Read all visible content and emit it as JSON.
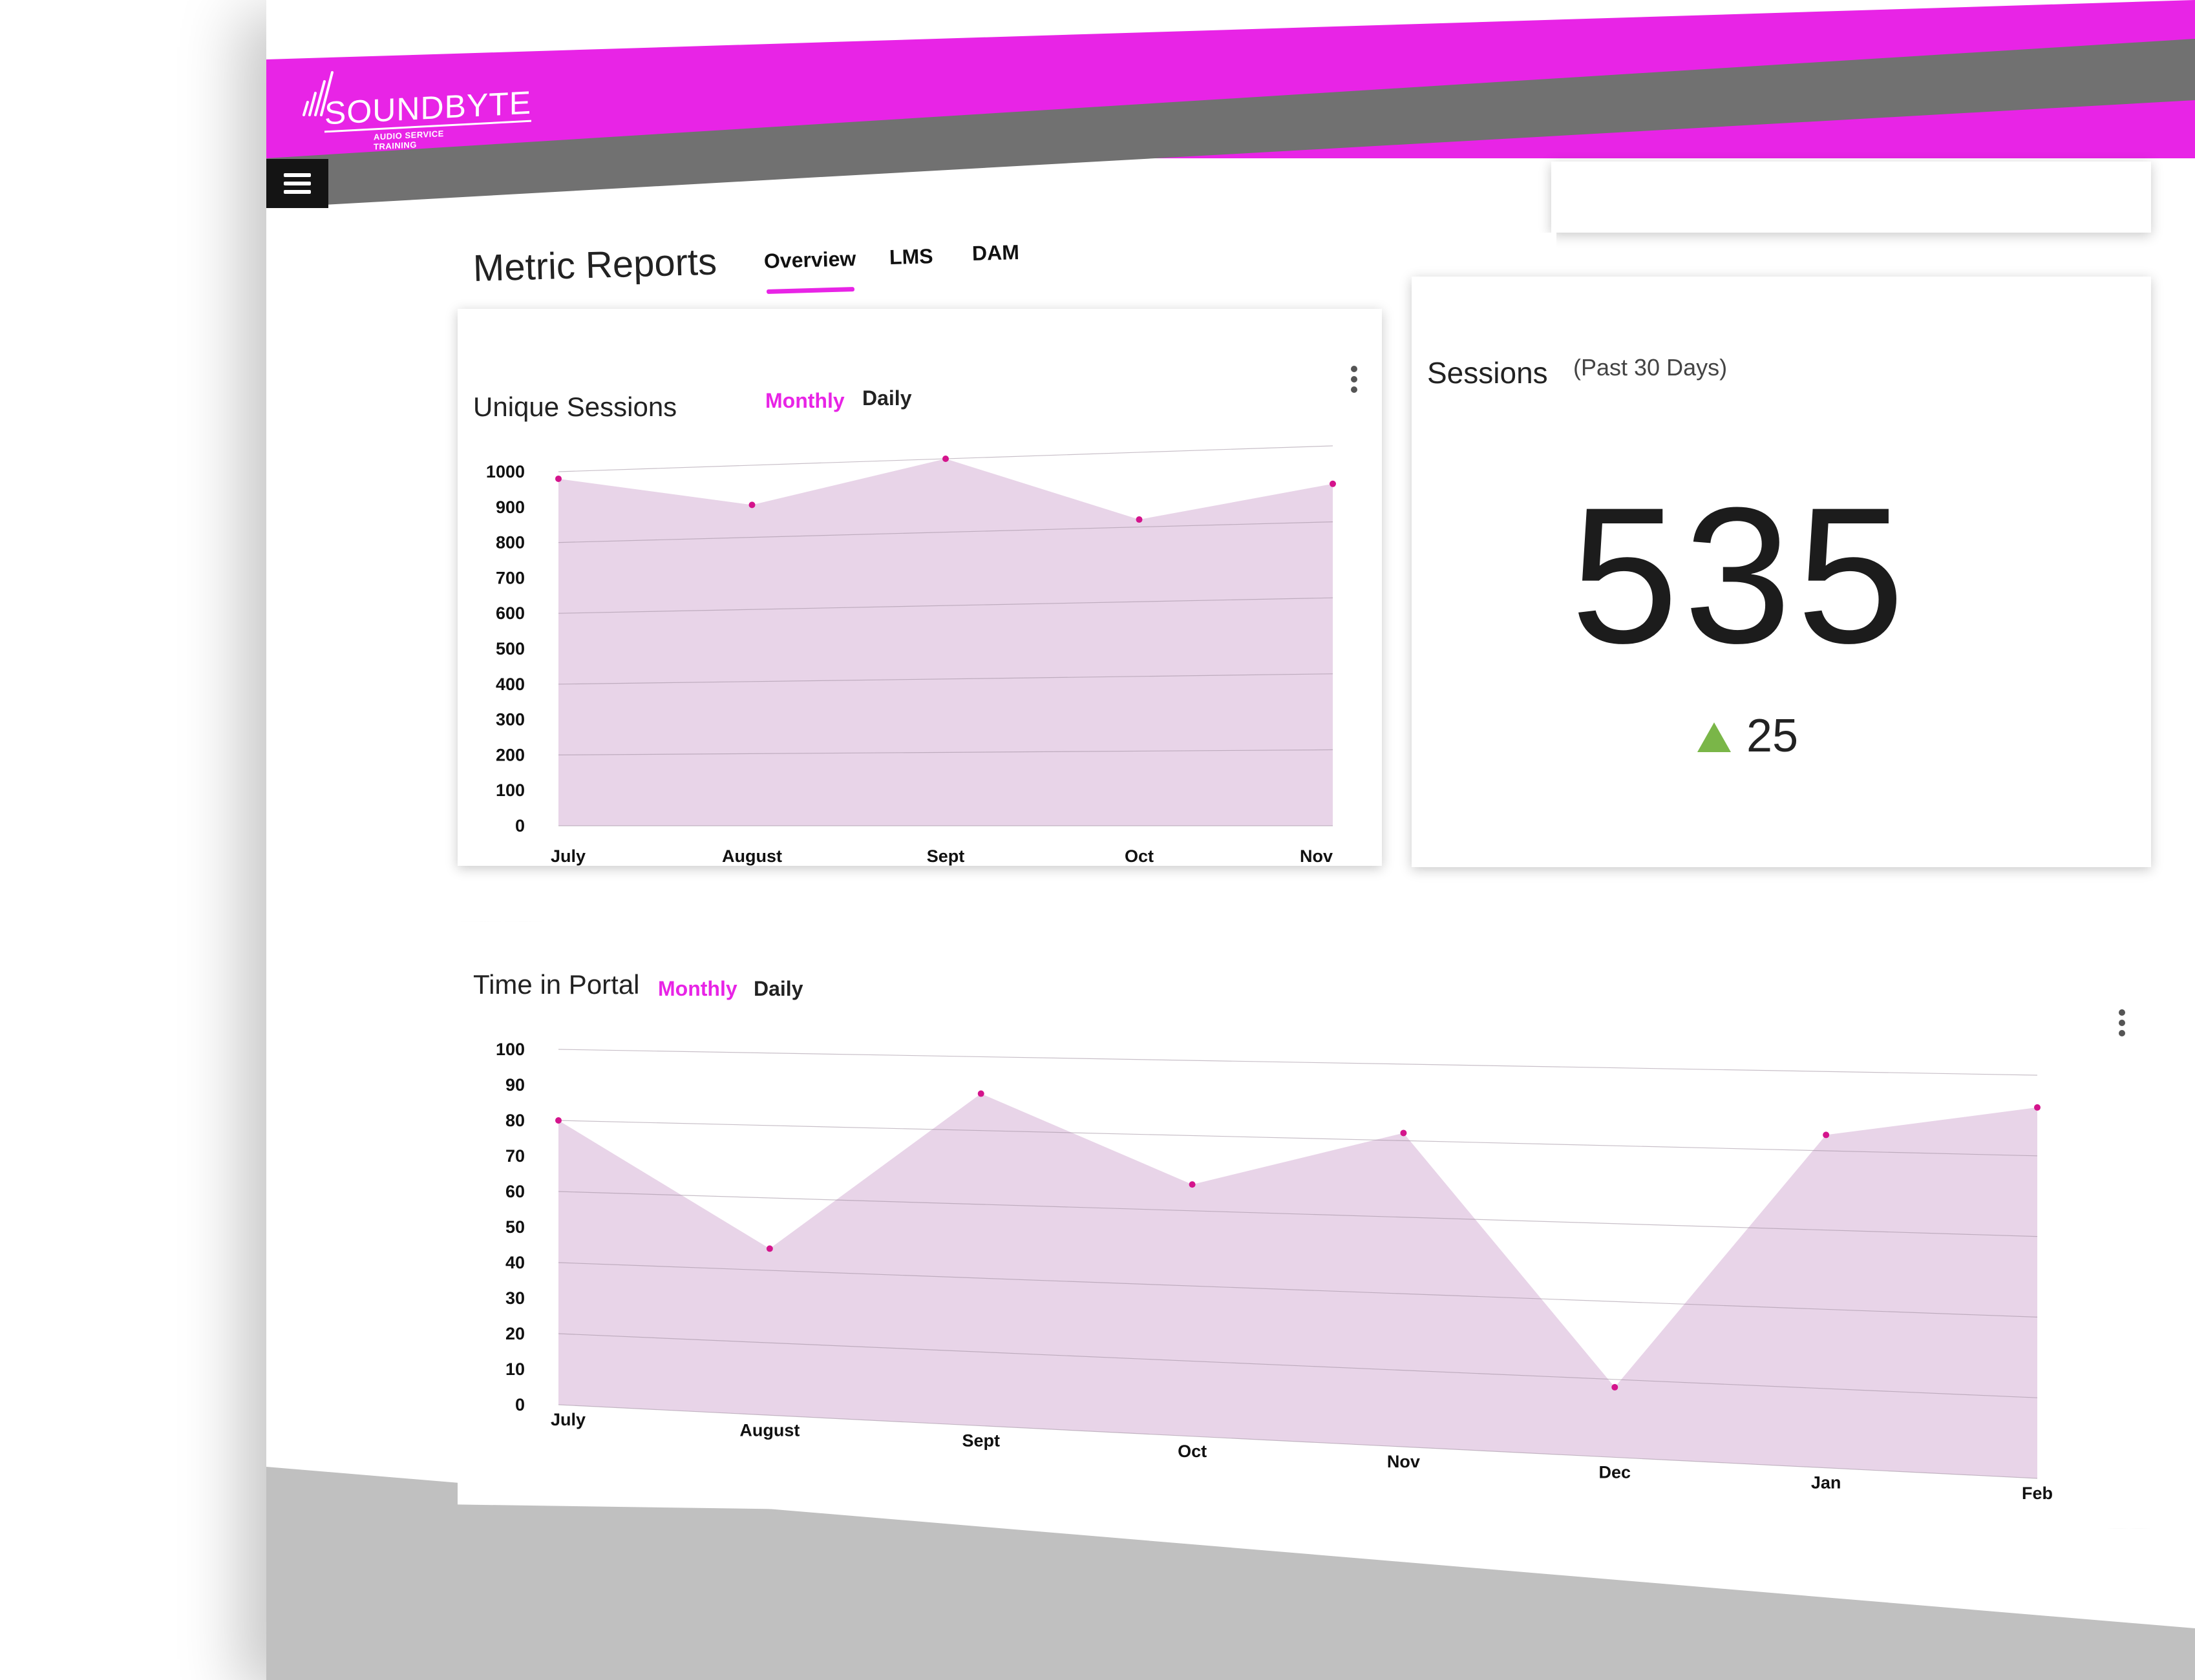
{
  "brand": {
    "name": "SOUNDBYTE",
    "tagline": "AUDIO SERVICE TRAINING",
    "accent": "#e824e6",
    "icon": "logo-sound-icon"
  },
  "nav": {
    "menu_icon": "hamburger-icon"
  },
  "page": {
    "title": "Metric Reports",
    "tabs": [
      {
        "label": "Overview",
        "active": true
      },
      {
        "label": "LMS",
        "active": false
      },
      {
        "label": "DAM",
        "active": false
      }
    ]
  },
  "unique_sessions": {
    "title": "Unique Sessions",
    "toggle": {
      "monthly": "Monthly",
      "daily": "Daily",
      "selected": "Monthly"
    },
    "menu_icon": "more-vertical-icon"
  },
  "sessions": {
    "title": "Sessions",
    "subtitle": "(Past 30 Days)",
    "value": "535",
    "delta": "25",
    "delta_direction": "up",
    "delta_color": "#7ab648"
  },
  "time_in_portal": {
    "title": "Time in Portal",
    "toggle": {
      "monthly": "Monthly",
      "daily": "Daily",
      "selected": "Monthly"
    },
    "menu_icon": "more-vertical-icon"
  },
  "chart_data": [
    {
      "id": "unique_sessions",
      "type": "area",
      "categories": [
        "July",
        "August",
        "Sept",
        "Oct",
        "Nov"
      ],
      "values": [
        980,
        890,
        1000,
        820,
        900
      ],
      "yticks": [
        0,
        100,
        200,
        300,
        400,
        500,
        600,
        700,
        800,
        900,
        1000
      ],
      "ylim": [
        0,
        1000
      ],
      "fill_color": "#e8d4e8",
      "point_color": "#d4148c",
      "grid": true
    },
    {
      "id": "time_in_portal",
      "type": "area",
      "categories": [
        "July",
        "August",
        "Sept",
        "Oct",
        "Nov",
        "Dec",
        "Jan",
        "Feb"
      ],
      "values": [
        80,
        46,
        90,
        67,
        82,
        18,
        84,
        92
      ],
      "yticks": [
        0,
        10,
        20,
        30,
        40,
        50,
        60,
        70,
        80,
        90,
        100
      ],
      "ylim": [
        0,
        100
      ],
      "fill_color": "#e8d4e8",
      "point_color": "#d4148c",
      "grid": true
    }
  ]
}
